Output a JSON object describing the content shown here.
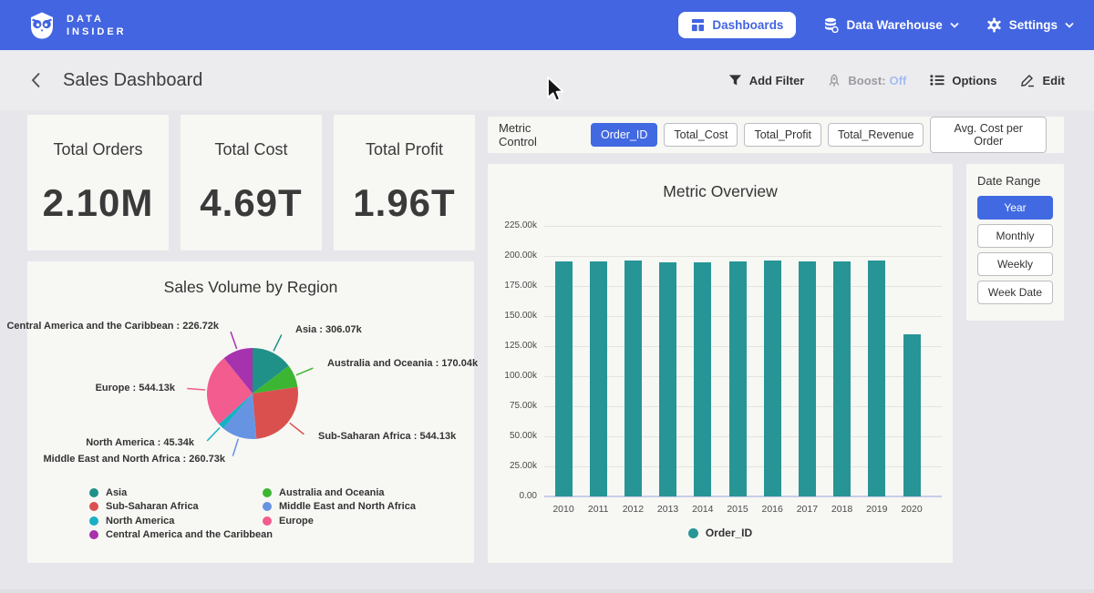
{
  "nav": {
    "brand_line1": "DATA",
    "brand_line2": "INSIDER",
    "dashboards_label": "Dashboards",
    "data_warehouse_label": "Data Warehouse",
    "settings_label": "Settings"
  },
  "header": {
    "title": "Sales Dashboard",
    "add_filter_label": "Add Filter",
    "boost_label": "Boost:",
    "boost_value": "Off",
    "options_label": "Options",
    "edit_label": "Edit"
  },
  "kpis": [
    {
      "label": "Total Orders",
      "value": "2.10M"
    },
    {
      "label": "Total Cost",
      "value": "4.69T"
    },
    {
      "label": "Total Profit",
      "value": "1.96T"
    }
  ],
  "metric_control": {
    "label": "Metric Control",
    "options": [
      {
        "label": "Order_ID",
        "selected": true
      },
      {
        "label": "Total_Cost",
        "selected": false
      },
      {
        "label": "Total_Profit",
        "selected": false
      },
      {
        "label": "Total_Revenue",
        "selected": false
      },
      {
        "label": "Avg. Cost per Order",
        "selected": false
      }
    ]
  },
  "date_range": {
    "label": "Date Range",
    "options": [
      {
        "label": "Year",
        "selected": true
      },
      {
        "label": "Monthly",
        "selected": false
      },
      {
        "label": "Weekly",
        "selected": false
      },
      {
        "label": "Week Date",
        "selected": false
      }
    ]
  },
  "icons": {
    "brand": "owl-icon",
    "dashboards": "grid-layout-icon",
    "data_warehouse": "database-icon",
    "settings": "gear-icon",
    "back": "chevron-left-icon",
    "add_filter": "funnel-icon",
    "boost": "rocket-icon",
    "options": "list-icon",
    "edit": "pencil-icon"
  },
  "colors": {
    "nav_blue": "#4365e1",
    "selected_blue": "#4169e1",
    "bar_teal": "#279595",
    "boost_off_blue": "#a3bdf0"
  },
  "chart_data": [
    {
      "id": "metric_overview",
      "type": "bar",
      "title": "Metric Overview",
      "categories": [
        "2010",
        "2011",
        "2012",
        "2013",
        "2014",
        "2015",
        "2016",
        "2017",
        "2018",
        "2019",
        "2020"
      ],
      "series": [
        {
          "name": "Order_ID",
          "color": "#279595",
          "values": [
            195500,
            195300,
            196500,
            194800,
            195000,
            195200,
            196200,
            195600,
            195100,
            195900,
            135200
          ]
        }
      ],
      "xlabel": "",
      "ylabel": "",
      "ylim": [
        0,
        225000
      ],
      "ytick_labels": [
        "225.00k",
        "200.00k",
        "175.00k",
        "150.00k",
        "125.00k",
        "100.00k",
        "75.00k",
        "50.00k",
        "25.00k",
        "0.00"
      ],
      "grid": true,
      "legend_position": "bottom"
    },
    {
      "id": "sales_volume_by_region",
      "type": "pie",
      "title": "Sales Volume by Region",
      "slices": [
        {
          "label": "Asia",
          "value": 306.07,
          "display": "Asia : 306.07k",
          "color": "#1f9188"
        },
        {
          "label": "Australia and Oceania",
          "value": 170.04,
          "display": "Australia and Oceania : 170.04k",
          "color": "#3cb632"
        },
        {
          "label": "Sub-Saharan Africa",
          "value": 544.13,
          "display": "Sub-Saharan Africa : 544.13k",
          "color": "#d9504f"
        },
        {
          "label": "Middle East and North Africa",
          "value": 260.73,
          "display": "Middle East and North Africa : 260.73k",
          "color": "#6694e3"
        },
        {
          "label": "North America",
          "value": 45.34,
          "display": "North America : 45.34k",
          "color": "#18b0c4"
        },
        {
          "label": "Europe",
          "value": 544.13,
          "display": "Europe : 544.13k",
          "color": "#f25c8e"
        },
        {
          "label": "Central America and the Caribbean",
          "value": 226.72,
          "display": "Central America and the Caribbean : 226.72k",
          "color": "#a732ad"
        }
      ],
      "value_unit": "k",
      "legend_position": "bottom"
    }
  ]
}
